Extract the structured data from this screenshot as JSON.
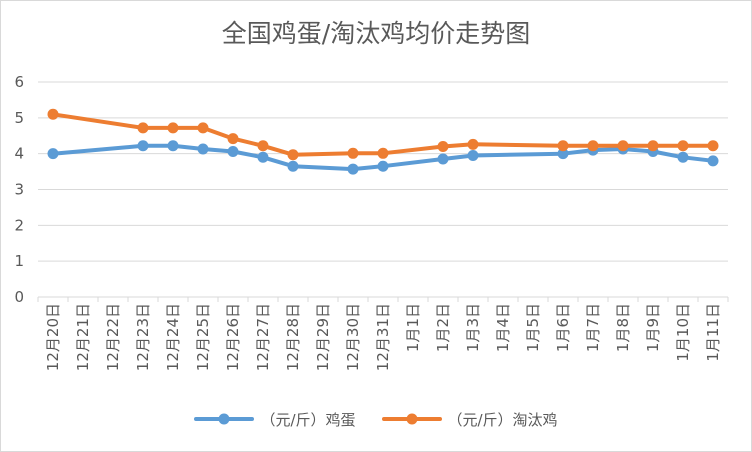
{
  "chart_data": {
    "type": "line",
    "title": "全国鸡蛋/淘汰鸡均价走势图",
    "xlabel": "",
    "ylabel": "",
    "ylim": [
      0,
      6
    ],
    "yticks": [
      "0",
      "1",
      "2",
      "3",
      "4",
      "5",
      "6"
    ],
    "grid": true,
    "legend_position": "bottom",
    "categories": [
      "12月20日",
      "12月21日",
      "12月22日",
      "12月23日",
      "12月24日",
      "12月25日",
      "12月26日",
      "12月27日",
      "12月28日",
      "12月29日",
      "12月30日",
      "12月31日",
      "1月1日",
      "1月2日",
      "1月3日",
      "1月4日",
      "1月5日",
      "1月6日",
      "1月7日",
      "1月8日",
      "1月9日",
      "1月10日",
      "1月11日"
    ],
    "series": [
      {
        "name": "（元/斤）鸡蛋",
        "color": "#5b9bd5",
        "values": [
          4.0,
          null,
          null,
          4.22,
          4.22,
          4.13,
          4.06,
          3.9,
          3.65,
          null,
          3.57,
          3.65,
          null,
          3.85,
          3.95,
          null,
          null,
          4.0,
          4.1,
          4.13,
          4.06,
          3.9,
          3.8
        ]
      },
      {
        "name": "（元/斤）淘汰鸡",
        "color": "#ed7d31",
        "values": [
          5.1,
          null,
          null,
          4.72,
          4.72,
          4.72,
          4.42,
          4.22,
          3.97,
          null,
          4.01,
          4.01,
          null,
          4.2,
          4.26,
          null,
          null,
          4.22,
          4.22,
          4.22,
          4.22,
          4.22,
          4.22
        ]
      }
    ]
  }
}
